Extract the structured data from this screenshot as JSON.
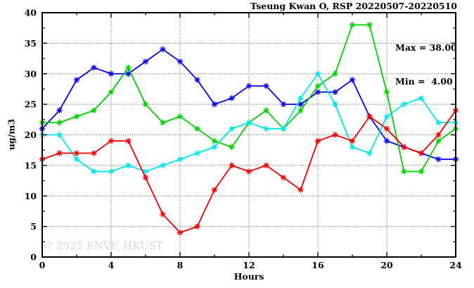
{
  "title": "Tseung Kwan O, RSP 20220507-20220510",
  "legend": {
    "max_line": "Max = 38.00",
    "min_line": "Min =  4.00"
  },
  "watermark": "© 2025 ENVF, HKUST",
  "chart_data": {
    "type": "line",
    "title": "Tseung Kwan O, RSP 20220507-20220510",
    "xlabel": "Hours",
    "ylabel": "ug/m3",
    "xlim": [
      0,
      24
    ],
    "ylim": [
      0,
      40
    ],
    "xticks_major": [
      0,
      4,
      8,
      12,
      16,
      20,
      24
    ],
    "xtick_minor_step": 2,
    "yticks_major": [
      0,
      5,
      10,
      15,
      20,
      25,
      30,
      35,
      40
    ],
    "ytick_minor_step": 2.5,
    "grid": true,
    "legend_position": "top-right-inside",
    "annotations": {
      "max": 38.0,
      "min": 4.0
    },
    "x": [
      0,
      1,
      2,
      3,
      4,
      5,
      6,
      7,
      8,
      9,
      10,
      11,
      12,
      13,
      14,
      15,
      16,
      17,
      18,
      19,
      20,
      21,
      22,
      23,
      24
    ],
    "series": [
      {
        "name": "blue",
        "color": "#0000ee",
        "values": [
          21,
          24,
          29,
          31,
          30,
          30,
          32,
          34,
          32,
          29,
          25,
          26,
          28,
          28,
          25,
          25,
          27,
          27,
          29,
          23,
          19,
          18,
          17,
          16,
          16
        ]
      },
      {
        "name": "green",
        "color": "#00cf00",
        "values": [
          22,
          22,
          23,
          24,
          27,
          31,
          25,
          22,
          23,
          21,
          19,
          18,
          22,
          24,
          21,
          24,
          28,
          30,
          38,
          38,
          27,
          14,
          14,
          19,
          21
        ]
      },
      {
        "name": "cyan",
        "color": "#00e5e5",
        "values": [
          20,
          20,
          16,
          14,
          14,
          15,
          14,
          15,
          16,
          17,
          18,
          21,
          22,
          21,
          21,
          26,
          30,
          25,
          18,
          17,
          23,
          25,
          26,
          22,
          22
        ]
      },
      {
        "name": "red",
        "color": "#ee0000",
        "values": [
          16,
          17,
          17,
          17,
          19,
          19,
          13,
          7,
          4,
          5,
          11,
          15,
          14,
          15,
          13,
          11,
          19,
          20,
          19,
          23,
          21,
          18,
          17,
          20,
          24
        ]
      }
    ]
  }
}
